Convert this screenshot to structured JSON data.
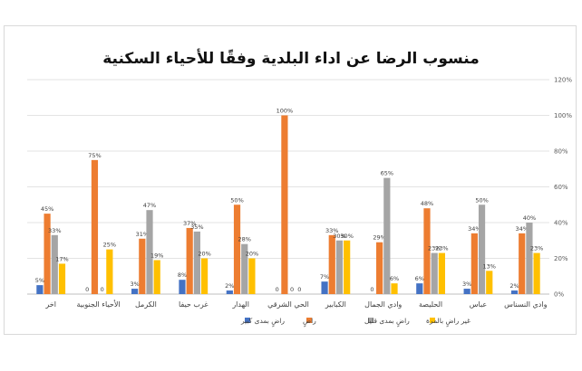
{
  "chart_data": {
    "type": "bar",
    "title": "منسوب الرضا عن اداء البلدية وفقًا للأحياء السكنية",
    "xlabel": "",
    "ylabel": "",
    "ylim": [
      0,
      120
    ],
    "yticks": [
      "0%",
      "20%",
      "40%",
      "60%",
      "80%",
      "100%",
      "120%"
    ],
    "x_axis_direction": "right-to-left",
    "grid": true,
    "legend_position": "bottom",
    "categories": [
      "وادي النسناس",
      "عباس",
      "الحليصة",
      "وادي الجمال",
      "الكبابير",
      "الحي الشرقي",
      "الهدار",
      "غرب حيفا",
      "الكرمل",
      "الأحياء الجنوبية",
      "اخر"
    ],
    "series": [
      {
        "name": "غير راضٍ بالمرة",
        "color": "#ffc000",
        "values": [
          23,
          13,
          23,
          6,
          30,
          0,
          20,
          20,
          19,
          25,
          17
        ],
        "labels": [
          "23%",
          "13%",
          "23%",
          "6%",
          "30%",
          "0",
          "20%",
          "20%",
          "19%",
          "25%",
          "17%"
        ]
      },
      {
        "name": "راضٍ بمدى قليل",
        "color": "#a5a5a5",
        "values": [
          40,
          50,
          23,
          65,
          30,
          0,
          28,
          35,
          47,
          0,
          33
        ],
        "labels": [
          "40%",
          "50%",
          "23%",
          "65%",
          "30%",
          "0",
          "28%",
          "35%",
          "47%",
          "0",
          "33%"
        ]
      },
      {
        "name": "راضٍ",
        "color": "#ed7d31",
        "values": [
          34,
          34,
          48,
          29,
          33,
          100,
          50,
          37,
          31,
          75,
          45
        ],
        "labels": [
          "34%",
          "34%",
          "48%",
          "29%",
          "33%",
          "100%",
          "50%",
          "37%",
          "31%",
          "75%",
          "45%"
        ]
      },
      {
        "name": "راضٍ بمدى كبير",
        "color": "#4472c4",
        "values": [
          2,
          3,
          6,
          0,
          7,
          0,
          2,
          8,
          3,
          0,
          5
        ],
        "labels": [
          "2%",
          "3%",
          "6%",
          "0",
          "7%",
          "0",
          "2%",
          "8%",
          "3%",
          "0",
          "5%"
        ]
      }
    ]
  }
}
